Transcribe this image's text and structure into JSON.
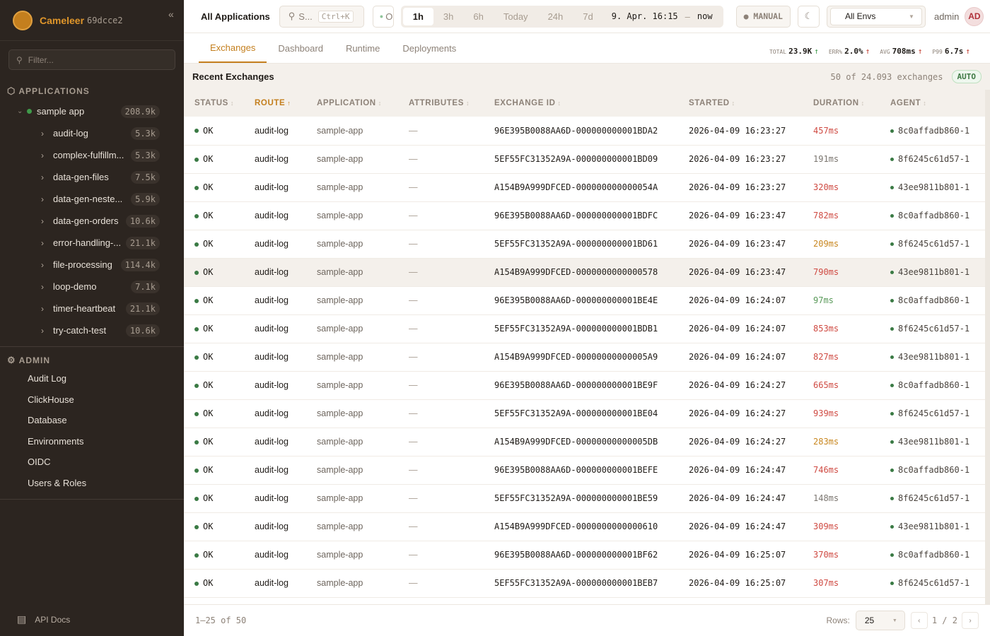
{
  "brand": {
    "name": "Cameleer",
    "version": "69dcce2",
    "collapse_icon": "double-chevron-left"
  },
  "sidebar": {
    "filter_placeholder": "Filter...",
    "applications_label": "APPLICATIONS",
    "app": {
      "name": "sample app",
      "count": "208.9k",
      "status_color": "#3f9a4a"
    },
    "routes": [
      {
        "label": "audit-log",
        "count": "5.3k"
      },
      {
        "label": "complex-fulfillm...",
        "count": "5.3k"
      },
      {
        "label": "data-gen-files",
        "count": "7.5k"
      },
      {
        "label": "data-gen-neste...",
        "count": "5.9k"
      },
      {
        "label": "data-gen-orders",
        "count": "10.6k"
      },
      {
        "label": "error-handling-...",
        "count": "21.1k"
      },
      {
        "label": "file-processing",
        "count": "114.4k"
      },
      {
        "label": "loop-demo",
        "count": "7.1k"
      },
      {
        "label": "timer-heartbeat",
        "count": "21.1k"
      },
      {
        "label": "try-catch-test",
        "count": "10.6k"
      }
    ],
    "admin_label": "ADMIN",
    "admin_items": [
      "Audit Log",
      "ClickHouse",
      "Database",
      "Environments",
      "OIDC",
      "Users & Roles"
    ],
    "api_docs": "API Docs"
  },
  "topbar": {
    "title": "All Applications",
    "search_placeholder": "S...",
    "search_shortcut": "Ctrl+K",
    "status_label": "O",
    "ranges": [
      "1h",
      "3h",
      "6h",
      "Today",
      "24h",
      "7d"
    ],
    "active_range": "1h",
    "range_from": "9. Apr. 16:15",
    "range_sep": "–",
    "range_to": "now",
    "refresh_mode": "● MANUAL",
    "env_select": "All Envs",
    "user": "admin",
    "avatar": "AD"
  },
  "tabs": [
    "Exchanges",
    "Dashboard",
    "Runtime",
    "Deployments"
  ],
  "active_tab": "Exchanges",
  "stats": [
    {
      "key": "TOTAL",
      "value": "23.9K",
      "trend": "↑",
      "trend_color": "green"
    },
    {
      "key": "ERR%",
      "value": "2.0%",
      "trend": "↑",
      "trend_color": "red"
    },
    {
      "key": "AVG",
      "value": "708ms",
      "trend": "↑",
      "trend_color": "red"
    },
    {
      "key": "P99",
      "value": "6.7s",
      "trend": "↑",
      "trend_color": "red"
    }
  ],
  "exchanges": {
    "heading": "Recent Exchanges",
    "count_text": "50 of 24.093 exchanges",
    "auto_badge": "AUTO",
    "columns": [
      "STATUS",
      "ROUTE",
      "APPLICATION",
      "ATTRIBUTES",
      "EXCHANGE ID",
      "STARTED",
      "DURATION",
      "AGENT"
    ],
    "sorted_column": "ROUTE",
    "duration_colors": {
      "red": "#cf4a42",
      "orange": "#c8861e",
      "gray": "#7b7670",
      "green": "#5a9a5a"
    },
    "rows": [
      {
        "status": "OK",
        "route": "audit-log",
        "app": "sample-app",
        "attrs": "—",
        "id": "96E395B0088AA6D-000000000001BDA2",
        "started": "2026-04-09 16:23:27",
        "duration": "457ms",
        "tone": "red",
        "agent": "8c0affadb860-1"
      },
      {
        "status": "OK",
        "route": "audit-log",
        "app": "sample-app",
        "attrs": "—",
        "id": "5EF55FC31352A9A-000000000001BD09",
        "started": "2026-04-09 16:23:27",
        "duration": "191ms",
        "tone": "gray",
        "agent": "8f6245c61d57-1"
      },
      {
        "status": "OK",
        "route": "audit-log",
        "app": "sample-app",
        "attrs": "—",
        "id": "A154B9A999DFCED-000000000000054A",
        "started": "2026-04-09 16:23:27",
        "duration": "320ms",
        "tone": "red",
        "agent": "43ee9811b801-1"
      },
      {
        "status": "OK",
        "route": "audit-log",
        "app": "sample-app",
        "attrs": "—",
        "id": "96E395B0088AA6D-000000000001BDFC",
        "started": "2026-04-09 16:23:47",
        "duration": "782ms",
        "tone": "red",
        "agent": "8c0affadb860-1"
      },
      {
        "status": "OK",
        "route": "audit-log",
        "app": "sample-app",
        "attrs": "—",
        "id": "5EF55FC31352A9A-000000000001BD61",
        "started": "2026-04-09 16:23:47",
        "duration": "209ms",
        "tone": "orange",
        "agent": "8f6245c61d57-1"
      },
      {
        "status": "OK",
        "route": "audit-log",
        "app": "sample-app",
        "attrs": "—",
        "id": "A154B9A999DFCED-0000000000000578",
        "started": "2026-04-09 16:23:47",
        "duration": "790ms",
        "tone": "red",
        "agent": "43ee9811b801-1",
        "highlighted": true
      },
      {
        "status": "OK",
        "route": "audit-log",
        "app": "sample-app",
        "attrs": "—",
        "id": "96E395B0088AA6D-000000000001BE4E",
        "started": "2026-04-09 16:24:07",
        "duration": "97ms",
        "tone": "green",
        "agent": "8c0affadb860-1"
      },
      {
        "status": "OK",
        "route": "audit-log",
        "app": "sample-app",
        "attrs": "—",
        "id": "5EF55FC31352A9A-000000000001BDB1",
        "started": "2026-04-09 16:24:07",
        "duration": "853ms",
        "tone": "red",
        "agent": "8f6245c61d57-1"
      },
      {
        "status": "OK",
        "route": "audit-log",
        "app": "sample-app",
        "attrs": "—",
        "id": "A154B9A999DFCED-00000000000005A9",
        "started": "2026-04-09 16:24:07",
        "duration": "827ms",
        "tone": "red",
        "agent": "43ee9811b801-1"
      },
      {
        "status": "OK",
        "route": "audit-log",
        "app": "sample-app",
        "attrs": "—",
        "id": "96E395B0088AA6D-000000000001BE9F",
        "started": "2026-04-09 16:24:27",
        "duration": "665ms",
        "tone": "red",
        "agent": "8c0affadb860-1"
      },
      {
        "status": "OK",
        "route": "audit-log",
        "app": "sample-app",
        "attrs": "—",
        "id": "5EF55FC31352A9A-000000000001BE04",
        "started": "2026-04-09 16:24:27",
        "duration": "939ms",
        "tone": "red",
        "agent": "8f6245c61d57-1"
      },
      {
        "status": "OK",
        "route": "audit-log",
        "app": "sample-app",
        "attrs": "—",
        "id": "A154B9A999DFCED-00000000000005DB",
        "started": "2026-04-09 16:24:27",
        "duration": "283ms",
        "tone": "orange",
        "agent": "43ee9811b801-1"
      },
      {
        "status": "OK",
        "route": "audit-log",
        "app": "sample-app",
        "attrs": "—",
        "id": "96E395B0088AA6D-000000000001BEFE",
        "started": "2026-04-09 16:24:47",
        "duration": "746ms",
        "tone": "red",
        "agent": "8c0affadb860-1"
      },
      {
        "status": "OK",
        "route": "audit-log",
        "app": "sample-app",
        "attrs": "—",
        "id": "5EF55FC31352A9A-000000000001BE59",
        "started": "2026-04-09 16:24:47",
        "duration": "148ms",
        "tone": "gray",
        "agent": "8f6245c61d57-1"
      },
      {
        "status": "OK",
        "route": "audit-log",
        "app": "sample-app",
        "attrs": "—",
        "id": "A154B9A999DFCED-0000000000000610",
        "started": "2026-04-09 16:24:47",
        "duration": "309ms",
        "tone": "red",
        "agent": "43ee9811b801-1"
      },
      {
        "status": "OK",
        "route": "audit-log",
        "app": "sample-app",
        "attrs": "—",
        "id": "96E395B0088AA6D-000000000001BF62",
        "started": "2026-04-09 16:25:07",
        "duration": "370ms",
        "tone": "red",
        "agent": "8c0affadb860-1"
      },
      {
        "status": "OK",
        "route": "audit-log",
        "app": "sample-app",
        "attrs": "—",
        "id": "5EF55FC31352A9A-000000000001BEB7",
        "started": "2026-04-09 16:25:07",
        "duration": "307ms",
        "tone": "red",
        "agent": "8f6245c61d57-1"
      }
    ]
  },
  "footer": {
    "range": "1–25 of 50",
    "rows_label": "Rows:",
    "rows_value": "25",
    "page": "1",
    "page_sep": "/",
    "pages": "2"
  }
}
